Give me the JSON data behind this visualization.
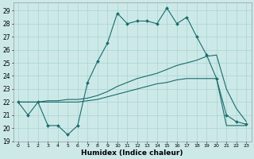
{
  "xlabel": "Humidex (Indice chaleur)",
  "background_color": "#cce9e8",
  "grid_color": "#a8d4d2",
  "line_color": "#1a6b6b",
  "xlim": [
    -0.5,
    23.5
  ],
  "ylim": [
    19,
    29.6
  ],
  "xticks": [
    0,
    1,
    2,
    3,
    4,
    5,
    6,
    7,
    8,
    9,
    10,
    11,
    12,
    13,
    14,
    15,
    16,
    17,
    18,
    19,
    20,
    21,
    22,
    23
  ],
  "yticks": [
    19,
    20,
    21,
    22,
    23,
    24,
    25,
    26,
    27,
    28,
    29
  ],
  "line1_x": [
    0,
    1,
    2,
    3,
    4,
    5,
    6,
    7,
    8,
    9,
    10,
    11,
    12,
    13,
    14,
    15,
    16,
    17,
    18,
    19,
    20,
    21,
    22,
    23
  ],
  "line1_y": [
    22,
    21,
    22,
    20.2,
    20.2,
    19.5,
    20.2,
    23.5,
    25.1,
    26.5,
    28.8,
    28.0,
    28.2,
    28.2,
    28.0,
    29.2,
    28.0,
    28.5,
    27.0,
    25.6,
    23.8,
    21.0,
    20.5,
    20.3
  ],
  "line2_x": [
    0,
    2,
    3,
    4,
    5,
    6,
    7,
    8,
    9,
    10,
    11,
    12,
    13,
    14,
    15,
    16,
    17,
    18,
    19,
    20,
    21,
    22,
    23
  ],
  "line2_y": [
    22,
    22,
    22.1,
    22.1,
    22.2,
    22.2,
    22.3,
    22.5,
    22.8,
    23.2,
    23.5,
    23.8,
    24.0,
    24.2,
    24.5,
    24.8,
    25.0,
    25.2,
    25.5,
    25.6,
    23.0,
    21.5,
    20.5
  ],
  "line3_x": [
    0,
    2,
    3,
    4,
    5,
    6,
    7,
    8,
    9,
    10,
    11,
    12,
    13,
    14,
    15,
    16,
    17,
    18,
    19,
    20,
    21,
    22,
    23
  ],
  "line3_y": [
    22,
    22,
    22,
    22,
    22,
    22,
    22.1,
    22.2,
    22.4,
    22.6,
    22.8,
    23.0,
    23.2,
    23.4,
    23.5,
    23.7,
    23.8,
    23.8,
    23.8,
    23.8,
    20.2,
    20.2,
    20.2
  ]
}
